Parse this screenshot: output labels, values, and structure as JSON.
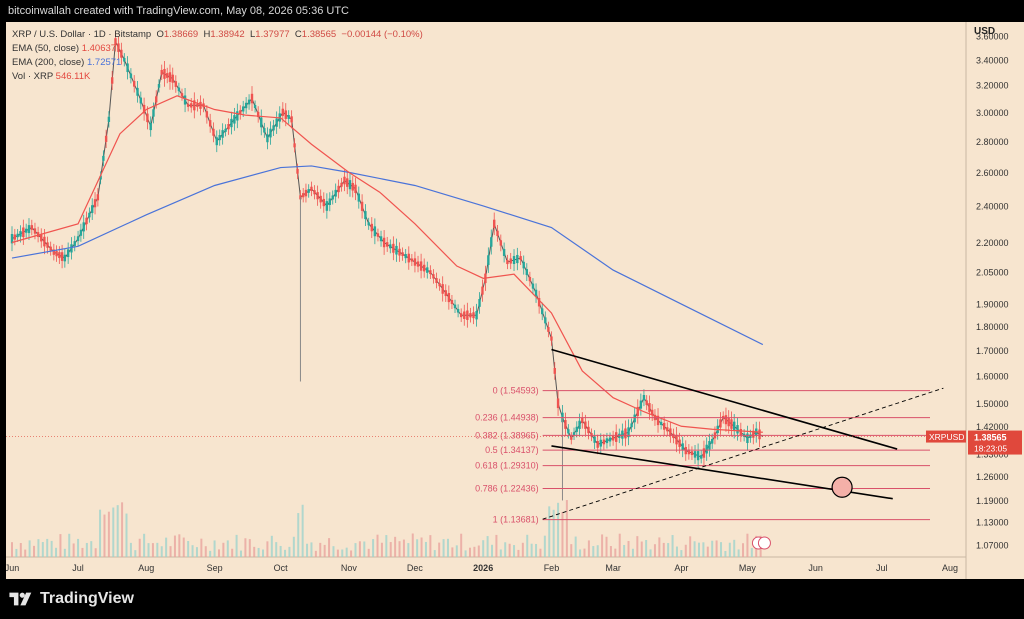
{
  "header": {
    "attribution": "bitcoinwallah created with TradingView.com, May 08, 2026 05:36 UTC"
  },
  "legend": {
    "symbol_line": "XRP / U.S. Dollar · 1D · Bitstamp",
    "open_label": "O",
    "open": "1.38669",
    "high_label": "H",
    "high": "1.38942",
    "low_label": "L",
    "low": "1.37977",
    "close_label": "C",
    "close": "1.38565",
    "change": "−0.00144 (−0.10%)",
    "ema50_label": "EMA (50, close)",
    "ema50_value": "1.40637",
    "ema200_label": "EMA (200, close)",
    "ema200_value": "1.72571",
    "vol_label": "Vol · XRP",
    "vol_value": "546.11K"
  },
  "footer": {
    "brand": "TradingView"
  },
  "colors": {
    "background": "#f7e5cf",
    "up": "#26a69a",
    "down": "#ef5350",
    "ema50": "#f0544f",
    "ema200": "#4a73d9",
    "fib": "#d9506a",
    "trendline": "#000000",
    "price_tag": "#e0483c"
  },
  "chart_data": {
    "type": "candlestick",
    "symbol": "XRP / U.S. Dollar · 1D · Bitstamp",
    "currency": "USD",
    "y_scale": "log",
    "ylim": [
      1.04,
      3.72
    ],
    "y_ticks": [
      "3.60000",
      "3.40000",
      "3.20000",
      "3.00000",
      "2.80000",
      "2.60000",
      "2.40000",
      "2.20000",
      "2.05000",
      "1.90000",
      "1.80000",
      "1.70000",
      "1.60000",
      "1.50000",
      "1.42000",
      "1.33000",
      "1.26000",
      "1.19000",
      "1.13000",
      "1.07000"
    ],
    "x_labels": [
      "Jun",
      "Jul",
      "Aug",
      "Sep",
      "Oct",
      "Nov",
      "Dec",
      "2026",
      "Feb",
      "Mar",
      "Apr",
      "May",
      "Jun",
      "Jul",
      "Aug"
    ],
    "x_label_dates": [
      "2025-06-01",
      "2025-07-01",
      "2025-08-01",
      "2025-09-01",
      "2025-10-01",
      "2025-11-01",
      "2025-12-01",
      "2026-01-01",
      "2026-02-01",
      "2026-03-01",
      "2026-04-01",
      "2026-05-01",
      "2026-06-01",
      "2026-07-01",
      "2026-08-01"
    ],
    "last_price": {
      "label": "XRPUSD",
      "value": "1.38565",
      "countdown": "18:23:05",
      "y": 1.38565
    },
    "fib_levels": [
      {
        "label": "0 (1.54593)",
        "value": 1.54593
      },
      {
        "label": "0.236 (1.44938)",
        "value": 1.44938
      },
      {
        "label": "0.382 (1.38965)",
        "value": 1.38965
      },
      {
        "label": "0.5 (1.34137)",
        "value": 1.34137
      },
      {
        "label": "0.618 (1.29310)",
        "value": 1.2931
      },
      {
        "label": "0.786 (1.22436)",
        "value": 1.22436
      },
      {
        "label": "1 (1.13681)",
        "value": 1.13681
      }
    ],
    "trendlines": [
      {
        "name": "upper",
        "style": "solid",
        "from": {
          "date": "2026-02-01",
          "y": 1.705
        },
        "to": {
          "date": "2026-07-08",
          "y": 1.345
        }
      },
      {
        "name": "lower",
        "style": "solid",
        "from": {
          "date": "2026-02-01",
          "y": 1.355
        },
        "to": {
          "date": "2026-07-06",
          "y": 1.195
        }
      },
      {
        "name": "dashed",
        "style": "dashed",
        "from": {
          "date": "2026-01-28",
          "y": 1.138
        },
        "to": {
          "date": "2026-07-29",
          "y": 1.555
        }
      }
    ],
    "target_circle": {
      "date": "2026-06-13",
      "y": 1.228
    },
    "ema50": [
      [
        "2025-06-01",
        2.2
      ],
      [
        "2025-07-01",
        2.3
      ],
      [
        "2025-07-20",
        2.85
      ],
      [
        "2025-08-01",
        3.02
      ],
      [
        "2025-08-15",
        3.12
      ],
      [
        "2025-09-01",
        3.02
      ],
      [
        "2025-09-15",
        2.98
      ],
      [
        "2025-10-01",
        2.96
      ],
      [
        "2025-10-15",
        2.78
      ],
      [
        "2025-11-01",
        2.6
      ],
      [
        "2025-11-15",
        2.48
      ],
      [
        "2025-12-01",
        2.3
      ],
      [
        "2025-12-20",
        2.08
      ],
      [
        "2026-01-01",
        2.02
      ],
      [
        "2026-01-15",
        2.04
      ],
      [
        "2026-02-01",
        1.86
      ],
      [
        "2026-02-15",
        1.62
      ],
      [
        "2026-03-01",
        1.52
      ],
      [
        "2026-03-15",
        1.47
      ],
      [
        "2026-04-01",
        1.42
      ],
      [
        "2026-04-15",
        1.41
      ],
      [
        "2026-05-08",
        1.4
      ]
    ],
    "ema200": [
      [
        "2025-06-01",
        2.12
      ],
      [
        "2025-07-01",
        2.18
      ],
      [
        "2025-08-01",
        2.35
      ],
      [
        "2025-09-01",
        2.52
      ],
      [
        "2025-10-01",
        2.63
      ],
      [
        "2025-10-15",
        2.64
      ],
      [
        "2025-11-01",
        2.6
      ],
      [
        "2025-12-01",
        2.52
      ],
      [
        "2026-01-01",
        2.4
      ],
      [
        "2026-02-01",
        2.28
      ],
      [
        "2026-03-01",
        2.06
      ],
      [
        "2026-04-01",
        1.9
      ],
      [
        "2026-05-08",
        1.725
      ]
    ],
    "price_path": [
      [
        "2025-06-01",
        2.22
      ],
      [
        "2025-06-10",
        2.28
      ],
      [
        "2025-06-20",
        2.15
      ],
      [
        "2025-06-25",
        2.12
      ],
      [
        "2025-07-01",
        2.22
      ],
      [
        "2025-07-10",
        2.45
      ],
      [
        "2025-07-15",
        2.95
      ],
      [
        "2025-07-18",
        3.55
      ],
      [
        "2025-07-22",
        3.4
      ],
      [
        "2025-07-28",
        3.15
      ],
      [
        "2025-08-03",
        2.9
      ],
      [
        "2025-08-08",
        3.3
      ],
      [
        "2025-08-13",
        3.25
      ],
      [
        "2025-08-20",
        3.05
      ],
      [
        "2025-08-27",
        3.05
      ],
      [
        "2025-09-02",
        2.8
      ],
      [
        "2025-09-10",
        2.95
      ],
      [
        "2025-09-18",
        3.1
      ],
      [
        "2025-09-25",
        2.82
      ],
      [
        "2025-10-02",
        3.0
      ],
      [
        "2025-10-06",
        2.95
      ],
      [
        "2025-10-10",
        2.45
      ],
      [
        "2025-10-15",
        2.5
      ],
      [
        "2025-10-22",
        2.4
      ],
      [
        "2025-10-30",
        2.55
      ],
      [
        "2025-11-04",
        2.5
      ],
      [
        "2025-11-10",
        2.3
      ],
      [
        "2025-11-17",
        2.2
      ],
      [
        "2025-11-24",
        2.15
      ],
      [
        "2025-12-01",
        2.1
      ],
      [
        "2025-12-08",
        2.05
      ],
      [
        "2025-12-15",
        1.95
      ],
      [
        "2025-12-22",
        1.85
      ],
      [
        "2025-12-29",
        1.85
      ],
      [
        "2026-01-02",
        2.02
      ],
      [
        "2026-01-06",
        2.3
      ],
      [
        "2026-01-12",
        2.1
      ],
      [
        "2026-01-18",
        2.12
      ],
      [
        "2026-01-25",
        1.95
      ],
      [
        "2026-02-01",
        1.75
      ],
      [
        "2026-02-04",
        1.5
      ],
      [
        "2026-02-06",
        1.45
      ],
      [
        "2026-02-10",
        1.38
      ],
      [
        "2026-02-15",
        1.44
      ],
      [
        "2026-02-22",
        1.36
      ],
      [
        "2026-03-01",
        1.38
      ],
      [
        "2026-03-08",
        1.4
      ],
      [
        "2026-03-15",
        1.52
      ],
      [
        "2026-03-20",
        1.45
      ],
      [
        "2026-03-27",
        1.4
      ],
      [
        "2026-04-03",
        1.34
      ],
      [
        "2026-04-10",
        1.32
      ],
      [
        "2026-04-15",
        1.37
      ],
      [
        "2026-04-20",
        1.45
      ],
      [
        "2026-04-25",
        1.42
      ],
      [
        "2026-05-01",
        1.38
      ],
      [
        "2026-05-05",
        1.4
      ],
      [
        "2026-05-08",
        1.38565
      ]
    ],
    "wicks": [
      {
        "date": "2025-10-10",
        "low": 1.58
      },
      {
        "date": "2026-02-06",
        "low": 1.19
      }
    ],
    "volume_label": "Vol · XRP"
  }
}
